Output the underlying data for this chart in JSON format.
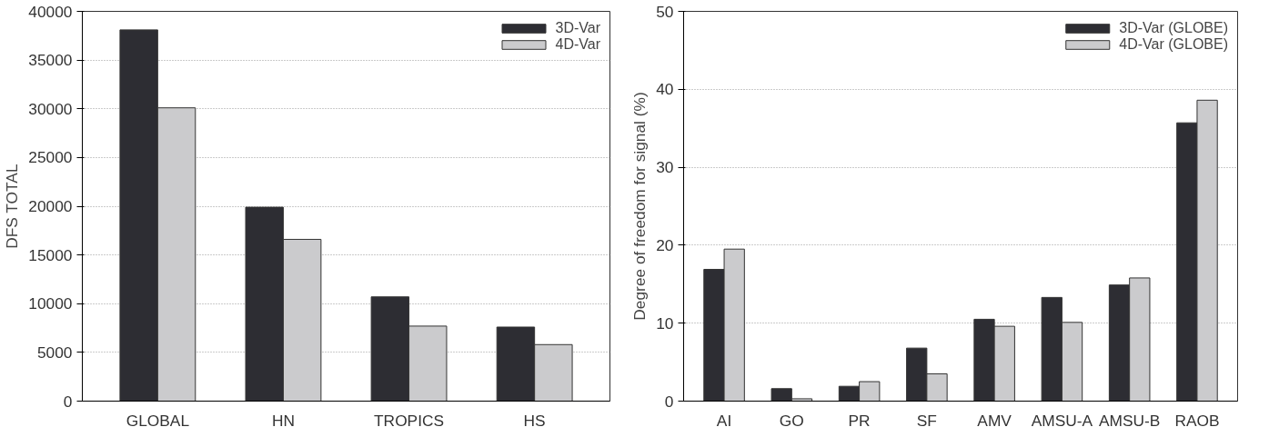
{
  "chart_data": [
    {
      "type": "bar",
      "ylabel": "DFS TOTAL",
      "categories": [
        "GLOBAL",
        "HN",
        "TROPICS",
        "HS"
      ],
      "ylim": [
        0,
        40000
      ],
      "yticks": [
        0,
        5000,
        10000,
        15000,
        20000,
        25000,
        30000,
        35000,
        40000
      ],
      "grid": "y",
      "legend": "top right",
      "series": [
        {
          "name": "3D-Var",
          "color": "#2d2d33",
          "values": [
            38100,
            19900,
            10700,
            7600
          ]
        },
        {
          "name": "4D-Var",
          "color": "#cbcbcd",
          "values": [
            30100,
            16600,
            7700,
            5800
          ]
        }
      ]
    },
    {
      "type": "bar",
      "ylabel": "Degree of freedom for signal (%)",
      "categories": [
        "AI",
        "GO",
        "PR",
        "SF",
        "AMV",
        "AMSU-A",
        "AMSU-B",
        "RAOB"
      ],
      "ylim": [
        0,
        50
      ],
      "yticks": [
        0,
        10,
        20,
        30,
        40,
        50
      ],
      "grid": "y",
      "legend": "top right",
      "series": [
        {
          "name": "3D-Var (GLOBE)",
          "color": "#2d2d33",
          "values": [
            16.9,
            1.6,
            1.9,
            6.8,
            10.5,
            13.3,
            14.9,
            35.7
          ]
        },
        {
          "name": "4D-Var (GLOBE)",
          "color": "#cbcbcd",
          "values": [
            19.5,
            0.3,
            2.5,
            3.5,
            9.6,
            10.1,
            15.8,
            38.6
          ]
        }
      ]
    }
  ]
}
